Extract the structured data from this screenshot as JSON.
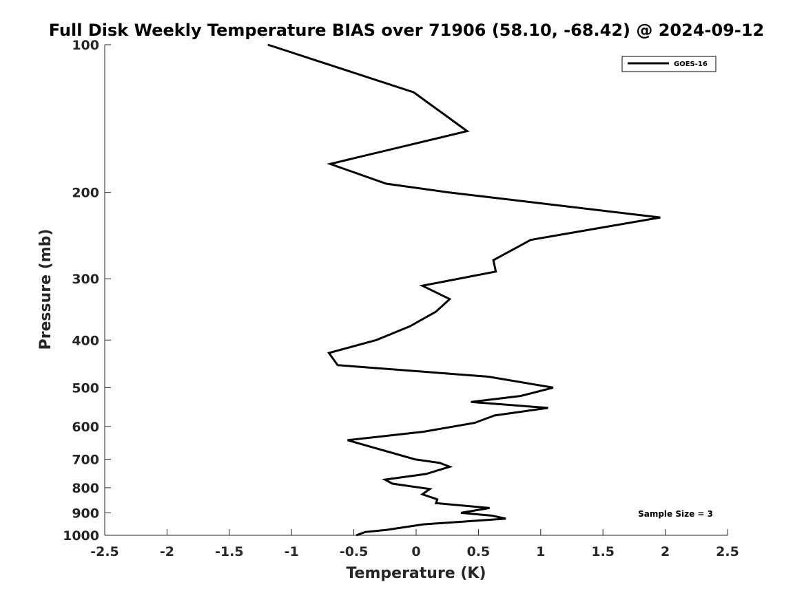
{
  "chart_data": {
    "type": "line",
    "title": "Full Disk Weekly Temperature BIAS over 71906 (58.10, -68.42) @ 2024-09-12",
    "xlabel": "Temperature (K)",
    "ylabel": "Pressure (mb)",
    "xlim": [
      -2.5,
      2.5
    ],
    "ylim": [
      100,
      1000
    ],
    "y_scale": "log",
    "y_reversed": true,
    "x_ticks": [
      -2.5,
      -2,
      -1.5,
      -1,
      -0.5,
      0,
      0.5,
      1,
      1.5,
      2,
      2.5
    ],
    "x_tick_labels": [
      "-2.5",
      "-2",
      "-1.5",
      "-1",
      "-0.5",
      "0",
      "0.5",
      "1",
      "1.5",
      "2",
      "2.5"
    ],
    "y_ticks": [
      100,
      200,
      300,
      400,
      500,
      600,
      700,
      800,
      900,
      1000
    ],
    "y_tick_labels": [
      "100",
      "200",
      "300",
      "400",
      "500",
      "600",
      "700",
      "800",
      "900",
      "1000"
    ],
    "grid": false,
    "legend": {
      "placement": "top-right",
      "entries": [
        "GOES-16"
      ]
    },
    "annotations": [
      {
        "text": "Sample Size = 3",
        "placement": "bottom-right"
      }
    ],
    "series": [
      {
        "name": "GOES-16",
        "color": "#000000",
        "points": [
          [
            -1.19,
            100
          ],
          [
            -0.02,
            125
          ],
          [
            0.41,
            150
          ],
          [
            -0.69,
            175
          ],
          [
            -0.24,
            192
          ],
          [
            0.26,
            200
          ],
          [
            1.96,
            225
          ],
          [
            0.92,
            250
          ],
          [
            0.62,
            275
          ],
          [
            0.64,
            290
          ],
          [
            0.05,
            310
          ],
          [
            0.27,
            330
          ],
          [
            0.16,
            350
          ],
          [
            -0.05,
            375
          ],
          [
            -0.32,
            400
          ],
          [
            -0.7,
            425
          ],
          [
            -0.63,
            450
          ],
          [
            0.58,
            475
          ],
          [
            1.1,
            500
          ],
          [
            0.84,
            520
          ],
          [
            0.44,
            535
          ],
          [
            1.06,
            550
          ],
          [
            0.63,
            570
          ],
          [
            0.47,
            590
          ],
          [
            0.06,
            615
          ],
          [
            -0.55,
            640
          ],
          [
            -0.32,
            665
          ],
          [
            -0.01,
            700
          ],
          [
            0.19,
            712
          ],
          [
            0.27,
            725
          ],
          [
            0.08,
            750
          ],
          [
            -0.25,
            770
          ],
          [
            -0.19,
            785
          ],
          [
            0.11,
            805
          ],
          [
            0.05,
            825
          ],
          [
            0.17,
            845
          ],
          [
            0.16,
            860
          ],
          [
            0.59,
            880
          ],
          [
            0.36,
            900
          ],
          [
            0.61,
            912
          ],
          [
            0.72,
            925
          ],
          [
            0.06,
            950
          ],
          [
            -0.24,
            975
          ],
          [
            -0.41,
            985
          ],
          [
            -0.48,
            1000
          ]
        ]
      }
    ]
  }
}
